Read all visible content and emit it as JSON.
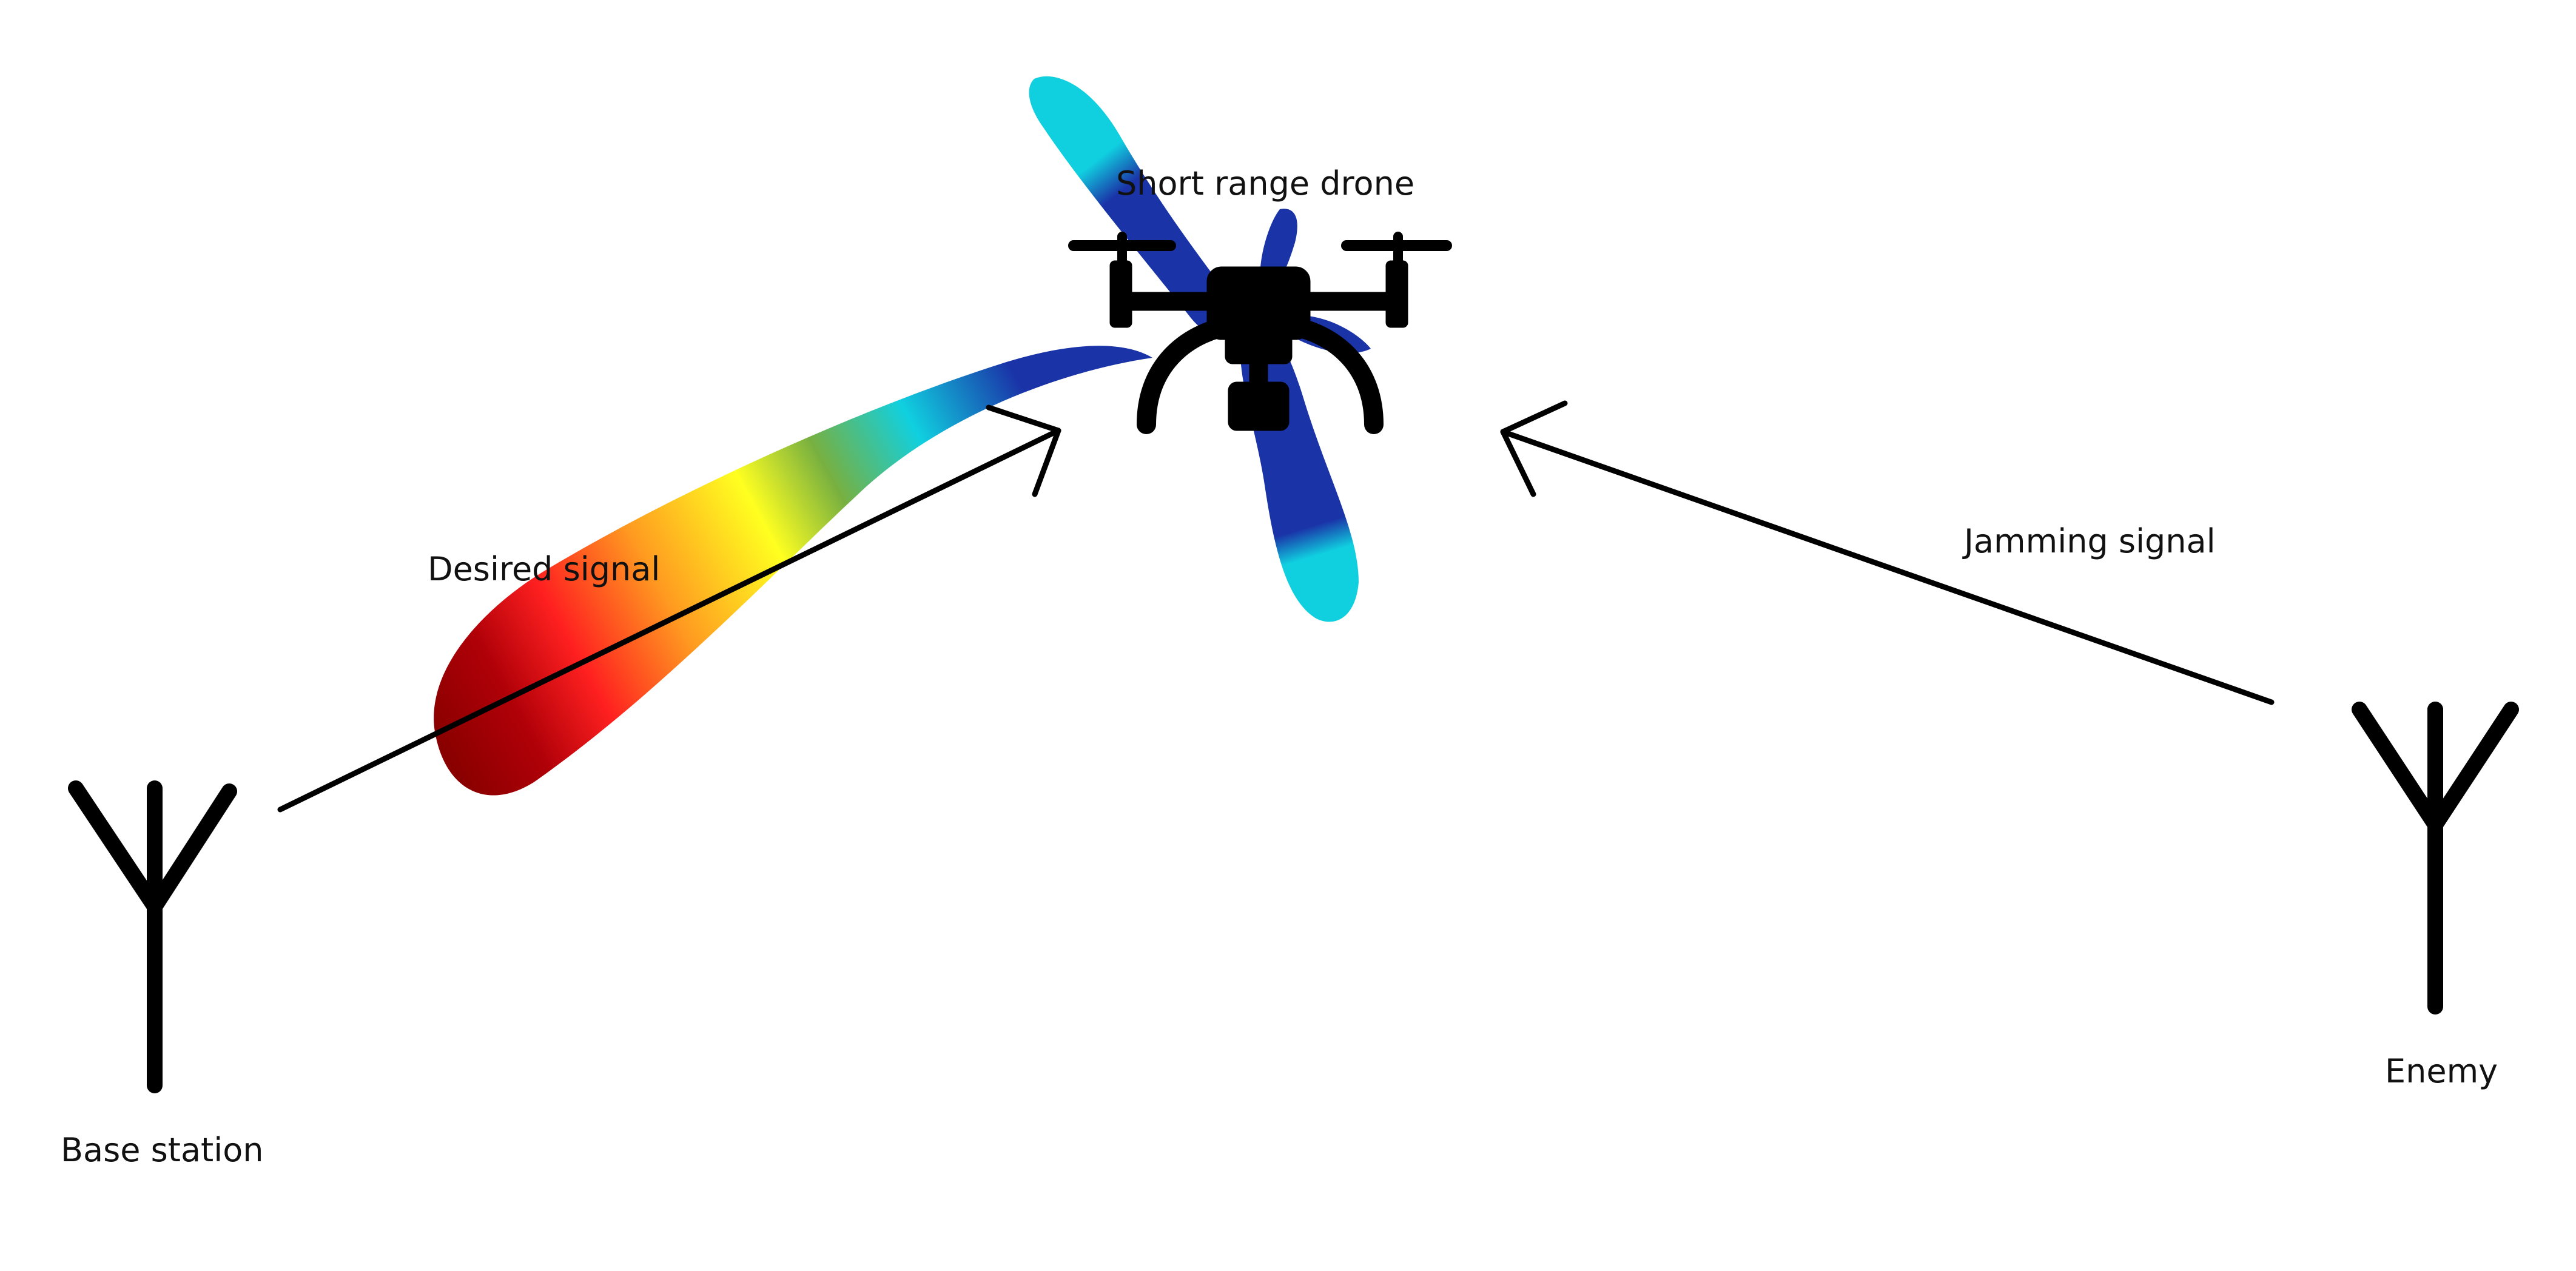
{
  "labels": {
    "drone": "Short range drone",
    "desired_signal": "Desired signal",
    "jamming_signal": "Jamming signal",
    "base_station": "Base station",
    "enemy": "Enemy"
  },
  "colors": {
    "beam_gradient": [
      "#8a0000",
      "#ff2020",
      "#ffa020",
      "#ffff20",
      "#70b040",
      "#10d0e0",
      "#1a34a8"
    ],
    "side_lobe_core": "#1a34a8",
    "side_lobe_tip": "#10d0e0",
    "lines": "#000000"
  },
  "icons": [
    "antenna-icon",
    "drone-icon",
    "arrow-icon"
  ]
}
